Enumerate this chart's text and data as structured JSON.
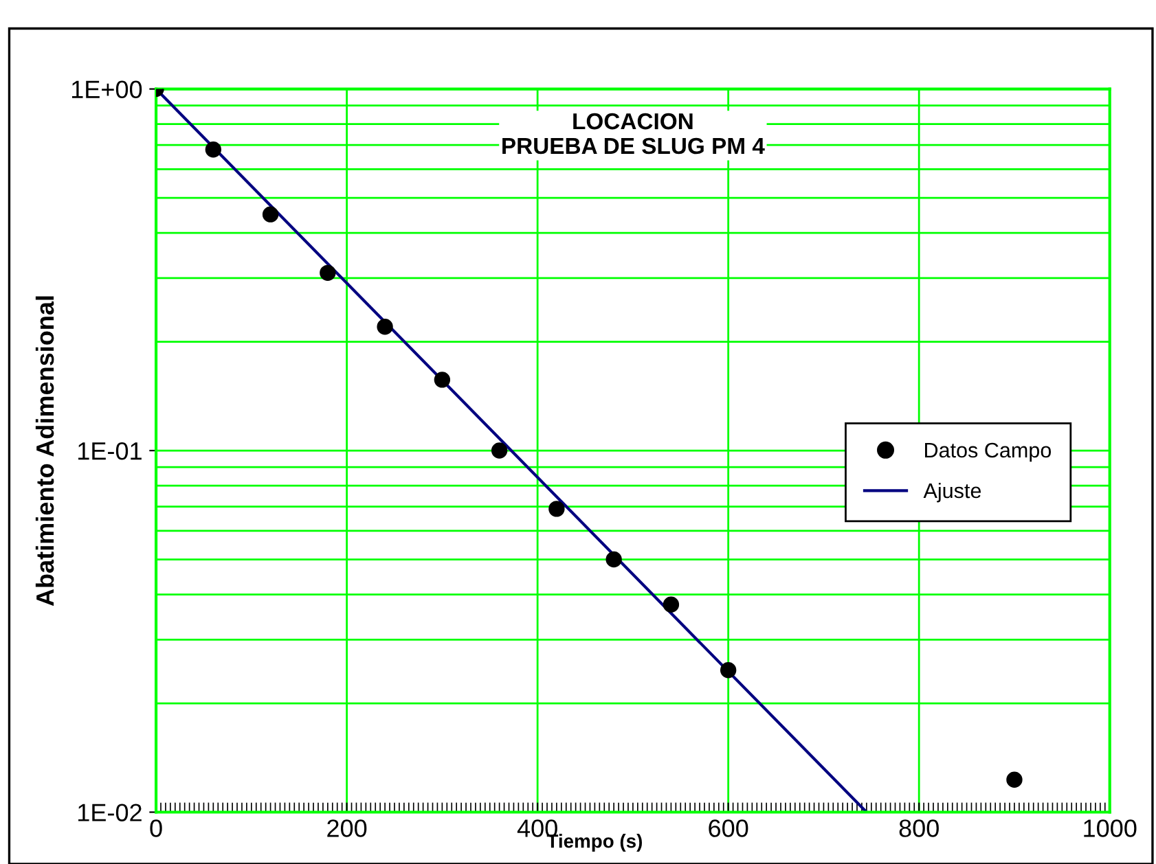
{
  "chart_data": {
    "type": "scatter",
    "title": "LOCACION\nPRUEBA DE SLUG PM 4",
    "xlabel": "Tiempo (s)",
    "ylabel": "Abatimiento Adimensional",
    "x": [
      0,
      60,
      120,
      180,
      240,
      300,
      360,
      420,
      480,
      540,
      600,
      900
    ],
    "series": [
      {
        "name": "Datos Campo",
        "type": "scatter",
        "color": "#000000",
        "marker": "circle",
        "values": [
          1.0,
          0.68,
          0.45,
          0.31,
          0.22,
          0.157,
          0.1,
          0.069,
          0.05,
          0.0375,
          0.0247,
          0.0123
        ]
      },
      {
        "name": "Ajuste",
        "type": "line",
        "color": "#000080",
        "x": [
          0,
          745
        ],
        "values": [
          1.0,
          0.01
        ]
      }
    ],
    "log": "y",
    "xlim": [
      0,
      1000
    ],
    "ylim": [
      0.01,
      1
    ],
    "xticks": [
      0,
      200,
      400,
      600,
      800,
      1000
    ],
    "yticks": [
      {
        "value": 1,
        "label": "1E+00"
      },
      {
        "value": 0.1,
        "label": "1E-01"
      },
      {
        "value": 0.01,
        "label": "1E-02"
      }
    ],
    "grid": true,
    "legend": "right"
  }
}
